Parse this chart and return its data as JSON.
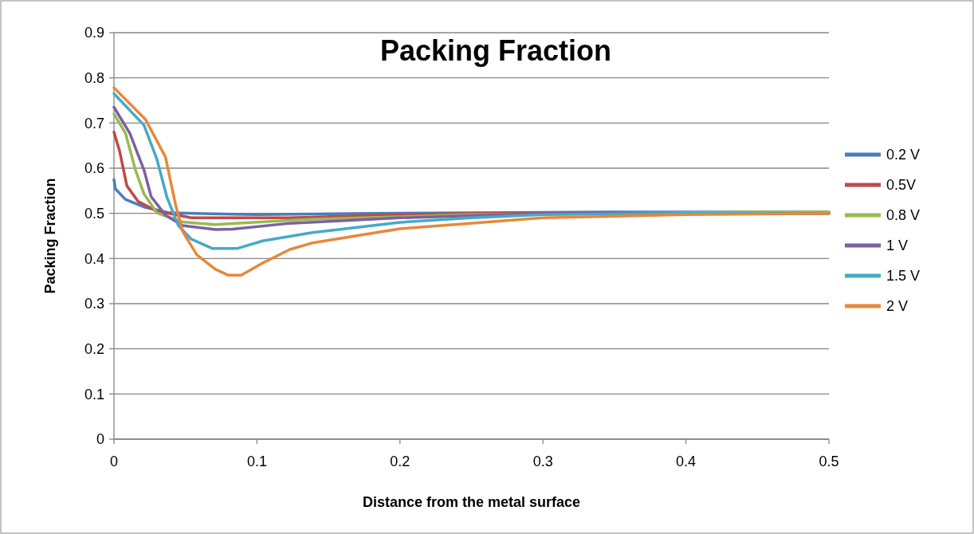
{
  "chart_data": {
    "type": "line",
    "title": "Packing Fraction",
    "xlabel": "Distance  from the metal surface",
    "ylabel": "Packing  Fraction",
    "xlim": [
      0,
      0.5
    ],
    "xticks": [
      0,
      0.1,
      0.2,
      0.3,
      0.4,
      0.5
    ],
    "ylim": [
      0,
      0.9
    ],
    "yticks": [
      0,
      0.1,
      0.2,
      0.3,
      0.4,
      0.5,
      0.6,
      0.7,
      0.8,
      0.9
    ],
    "grid": "y",
    "legend": "right",
    "marker": "none",
    "line_style": "solid",
    "series": [
      {
        "name": "0.2 V",
        "color": "#4a7ebb",
        "x": [
          0,
          0.001,
          0.008,
          0.021,
          0.039,
          0.1,
          0.18,
          0.36,
          0.5
        ],
        "values": [
          0.575,
          0.554,
          0.531,
          0.514,
          0.501,
          0.497,
          0.5,
          0.503,
          0.503
        ]
      },
      {
        "name": "0.5V",
        "color": "#be4b48",
        "x": [
          0,
          0.004,
          0.009,
          0.017,
          0.03,
          0.054,
          0.123,
          0.2,
          0.25,
          0.5
        ],
        "values": [
          0.68,
          0.637,
          0.561,
          0.526,
          0.505,
          0.49,
          0.49,
          0.497,
          0.5,
          0.5
        ]
      },
      {
        "name": "0.8 V",
        "color": "#98b954",
        "x": [
          0,
          0.008,
          0.015,
          0.021,
          0.03,
          0.048,
          0.071,
          0.085,
          0.138,
          0.25,
          0.45,
          0.5
        ],
        "values": [
          0.72,
          0.678,
          0.596,
          0.543,
          0.501,
          0.481,
          0.475,
          0.478,
          0.487,
          0.497,
          0.503,
          0.503
        ]
      },
      {
        "name": "1 V",
        "color": "#7d60a0",
        "x": [
          0,
          0.011,
          0.021,
          0.026,
          0.036,
          0.048,
          0.071,
          0.083,
          0.123,
          0.2,
          0.3,
          0.5
        ],
        "values": [
          0.735,
          0.678,
          0.596,
          0.537,
          0.496,
          0.473,
          0.464,
          0.465,
          0.478,
          0.49,
          0.5,
          0.5
        ]
      },
      {
        "name": "1.5 V",
        "color": "#46aac5",
        "x": [
          0,
          0.021,
          0.03,
          0.037,
          0.045,
          0.054,
          0.069,
          0.086,
          0.104,
          0.138,
          0.2,
          0.25,
          0.3,
          0.4,
          0.5
        ],
        "values": [
          0.765,
          0.695,
          0.62,
          0.536,
          0.473,
          0.443,
          0.422,
          0.422,
          0.439,
          0.457,
          0.48,
          0.49,
          0.497,
          0.5,
          0.5
        ]
      },
      {
        "name": "2 V",
        "color": "#e8883a",
        "x": [
          0,
          0.022,
          0.036,
          0.043,
          0.048,
          0.058,
          0.071,
          0.08,
          0.089,
          0.104,
          0.123,
          0.138,
          0.2,
          0.3,
          0.4,
          0.5
        ],
        "values": [
          0.778,
          0.708,
          0.625,
          0.52,
          0.46,
          0.408,
          0.376,
          0.363,
          0.363,
          0.39,
          0.42,
          0.434,
          0.466,
          0.49,
          0.497,
          0.5
        ]
      }
    ]
  }
}
